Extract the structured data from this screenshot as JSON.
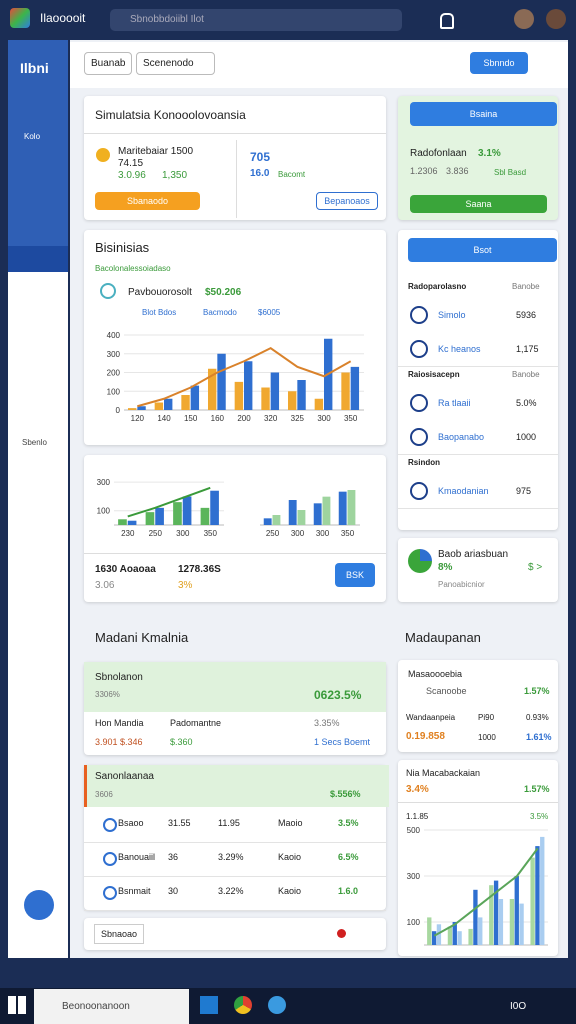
{
  "app": {
    "name": "Ilaooooit",
    "search": "Sbnobbdoiibl Ilot"
  },
  "sidebar": {
    "title": "Ilbni",
    "items": [
      "Kolo",
      "Sbenlo"
    ]
  },
  "toolbar": {
    "button": "Buanab",
    "dropdown": "Scenenodo",
    "action": "Sbnndo"
  },
  "summary": {
    "title": "Simulatsia Konooolovoansia",
    "metric_label": "Maritebaiar 1500",
    "metric_value": "74.15",
    "green_a": "3.0.96",
    "green_b": "1,350",
    "blue_value": "705",
    "blue_sub": "16.0",
    "blue_note": "Bacomt",
    "orange_button": "Sbanaodo",
    "outline_button": "Bepanoaos"
  },
  "promo": {
    "button_top": "Bsaina",
    "label": "Radofonlaan",
    "pct": "3.1%",
    "sub": "1.2306",
    "sub2": "3.836",
    "badge": "Sbl Basd",
    "button_bottom": "Saana"
  },
  "chart1": {
    "title": "Bisinisias",
    "subtitle": "Bacolonalessoiadaso",
    "kpi_label": "Pavbouorosolt",
    "kpi_value": "$50.206",
    "categories": [
      "120",
      "140",
      "150",
      "160",
      "200",
      "320",
      "325",
      "300",
      "350"
    ],
    "series": [
      {
        "name": "Blot Bdos",
        "color": "#f0a830",
        "values": [
          10,
          40,
          80,
          220,
          150,
          120,
          100,
          60,
          200
        ]
      },
      {
        "name": "Bacmodo",
        "color": "#2f6fd0",
        "values": [
          20,
          60,
          130,
          300,
          260,
          200,
          160,
          380,
          230
        ]
      }
    ],
    "line": {
      "name": "$6005",
      "color": "#d9822b",
      "values": [
        20,
        60,
        120,
        200,
        260,
        330,
        230,
        180,
        260
      ]
    },
    "ylim": [
      0,
      480
    ],
    "yticks": [
      0,
      100,
      200,
      300,
      400
    ]
  },
  "chart2": {
    "categories": [
      "230",
      "250",
      "300",
      "350"
    ],
    "series": [
      {
        "color": "#5bb55b",
        "values": [
          40,
          90,
          160,
          120
        ]
      },
      {
        "color": "#2f6fd0",
        "values": [
          30,
          120,
          200,
          240
        ]
      }
    ],
    "line": {
      "color": "#3a9a3a",
      "values": [
        60,
        120,
        190,
        260
      ]
    },
    "ylim": [
      0,
      350
    ],
    "yticks": [
      100,
      300
    ]
  },
  "chart3": {
    "categories": [
      "250",
      "300",
      "300",
      "350"
    ],
    "series": [
      {
        "color": "#2f6fd0",
        "values": [
          40,
          150,
          130,
          200
        ]
      },
      {
        "color": "#9ed49e",
        "values": [
          60,
          90,
          170,
          210
        ]
      }
    ],
    "ylim": [
      0,
      300
    ],
    "yticks": []
  },
  "stats": {
    "a": "1630 Aoaoaa",
    "b": "1278.36S",
    "c": "3.06",
    "d": "3%",
    "button": "BSK"
  },
  "side_list": {
    "button": "Bsot",
    "groups": [
      {
        "title": "Radoparolasno",
        "aside": "Banobe",
        "rows": [
          {
            "name": "Simolo",
            "value": "5936"
          },
          {
            "name": "Kc heanos",
            "value": "1,175"
          }
        ]
      },
      {
        "title": "Raiosisacepn",
        "aside": "Banobe",
        "rows": [
          {
            "name": "Ra tlaaii",
            "value": "5.0%"
          },
          {
            "name": "Baopanabo",
            "value": "1000"
          }
        ]
      },
      {
        "title": "Rsindon",
        "rows": [
          {
            "name": "Kmaodanian",
            "value": "975"
          }
        ]
      }
    ]
  },
  "side_kpi": {
    "label": "Baob ariasbuan",
    "pct": "8%",
    "value": "$ >",
    "note": "Panoabicnior"
  },
  "sections": {
    "left": "Madani Kmalnia",
    "right": "Madaupanan"
  },
  "panel1": {
    "header": "Sbnolanon",
    "sub": "3306%",
    "value": "0623.5%",
    "col1": "Hon Mandia",
    "col2": "Padomantne",
    "col3": "3.35%",
    "r1": "3.901 $.346",
    "r2": "$.360",
    "r3": "1 Secs Boemt"
  },
  "panel2": {
    "header": "Sanonlaanaa",
    "sub": "3606",
    "value": "$.556%",
    "rows": [
      [
        "Bsaoo",
        "31.55",
        "11.95",
        "Maoio",
        "3.5%"
      ],
      [
        "Banouaiil",
        "36",
        "3.29%",
        "Kaoio",
        "6.5%"
      ],
      [
        "Bsnmait",
        "30",
        "3.22%",
        "Kaoio",
        "1.6.0"
      ]
    ]
  },
  "panel3": {
    "label": "Sbnaoao"
  },
  "panel4": {
    "title": "Masaoooebia",
    "row1": "Scanoobe",
    "row1_pct": "1.57%",
    "col1": "Wandaanpeia",
    "col2": "Pi90",
    "col3": "0.93%",
    "v1": "0.19.858",
    "v2": "1000",
    "v3": "1.61%"
  },
  "panel5": {
    "title": "Nia Macabackaian",
    "pct": "3.4%",
    "pct2": "1.57%",
    "note": "1.1.85",
    "note2": "3.5%"
  },
  "chart4": {
    "categories": [],
    "series": [
      {
        "color": "#a8d8a0",
        "values": [
          120,
          80,
          70,
          260,
          200,
          380
        ]
      },
      {
        "color": "#2f6fd0",
        "values": [
          60,
          100,
          240,
          280,
          300,
          430
        ]
      },
      {
        "color": "#a9cdf0",
        "values": [
          90,
          60,
          120,
          200,
          180,
          470
        ]
      }
    ],
    "line": {
      "color": "#5aa55a",
      "values": [
        40,
        90,
        160,
        230,
        300,
        420
      ]
    },
    "ylim": [
      0,
      500
    ],
    "yticks": [
      100,
      300,
      500
    ]
  },
  "taskbar": {
    "search": "Beonoonanoon",
    "time": "I0O"
  }
}
